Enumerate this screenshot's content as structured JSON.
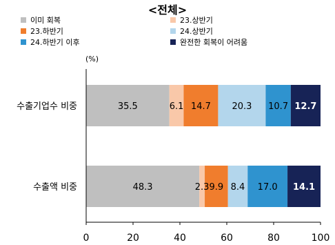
{
  "chart_data": {
    "type": "bar",
    "orientation": "horizontal",
    "stacked": true,
    "title": "<전체>",
    "unit_label": "(%)",
    "categories": [
      "수출기업수 비중",
      "수출액 비중"
    ],
    "series": [
      {
        "name": "이미 회복",
        "color": "#bfbfbf",
        "label_color": "#000000",
        "values": [
          35.5,
          48.3
        ]
      },
      {
        "name": "23.상반기",
        "color": "#f9c8a9",
        "label_color": "#000000",
        "values": [
          6.1,
          2.3
        ]
      },
      {
        "name": "23.하반기",
        "color": "#f07d2d",
        "label_color": "#000000",
        "values": [
          14.7,
          9.9
        ]
      },
      {
        "name": "24.상반기",
        "color": "#b3d6ec",
        "label_color": "#000000",
        "values": [
          20.3,
          8.4
        ]
      },
      {
        "name": "24.하반기 이후",
        "color": "#2f93cf",
        "label_color": "#000000",
        "values": [
          10.7,
          17.0
        ]
      },
      {
        "name": "완전한 회복이 어려움",
        "color": "#172356",
        "label_color": "#ffffff",
        "label_bold": true,
        "values": [
          12.7,
          14.1
        ]
      }
    ],
    "xlim": [
      0,
      100
    ],
    "xticks": [
      0,
      20,
      40,
      60,
      80,
      100
    ],
    "xtick_labels": [
      "0",
      "20",
      "40",
      "60",
      "80",
      "100"
    ],
    "legend_position": "top",
    "grid": false
  }
}
